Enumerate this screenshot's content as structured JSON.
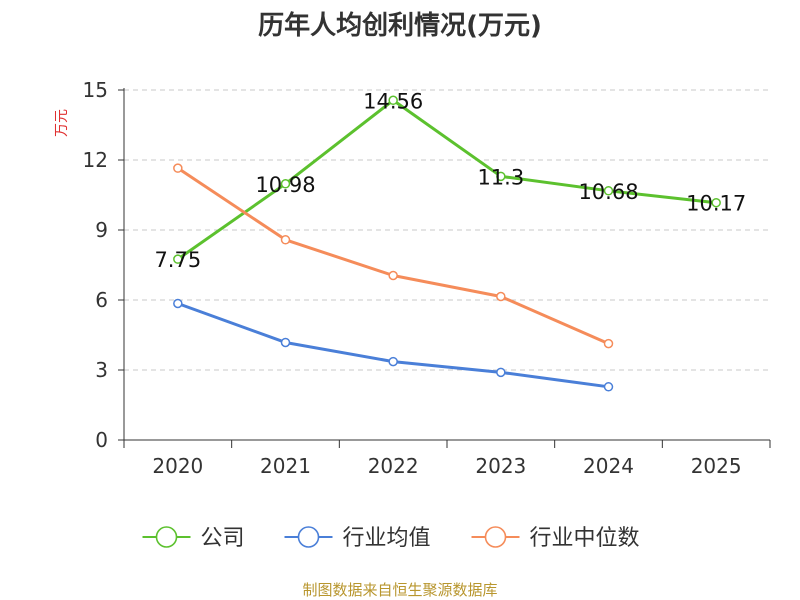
{
  "chart_data": {
    "type": "line",
    "title": "历年人均创利情况(万元)",
    "ylabel": "万元",
    "xlabel": "",
    "categories": [
      "2020",
      "2021",
      "2022",
      "2023",
      "2024",
      "2025"
    ],
    "ylim": [
      0,
      15
    ],
    "yticks": [
      0,
      3,
      6,
      9,
      12,
      15
    ],
    "grid": true,
    "legend_position": "bottom",
    "series": [
      {
        "name": "公司",
        "color": "#5cc12e",
        "values": [
          7.75,
          10.98,
          14.56,
          11.3,
          10.68,
          10.17
        ],
        "labels": [
          "7.75",
          "10.98",
          "14.56",
          "11.3",
          "10.68",
          "10.17"
        ],
        "show_labels": true
      },
      {
        "name": "行业均值",
        "color": "#4a7fd8",
        "values": [
          5.85,
          4.18,
          3.36,
          2.9,
          2.28,
          null
        ],
        "show_labels": false
      },
      {
        "name": "行业中位数",
        "color": "#f58c5a",
        "values": [
          11.65,
          8.58,
          7.05,
          6.15,
          4.13,
          null
        ],
        "show_labels": false
      }
    ],
    "source": "制图数据来自恒生聚源数据库"
  }
}
